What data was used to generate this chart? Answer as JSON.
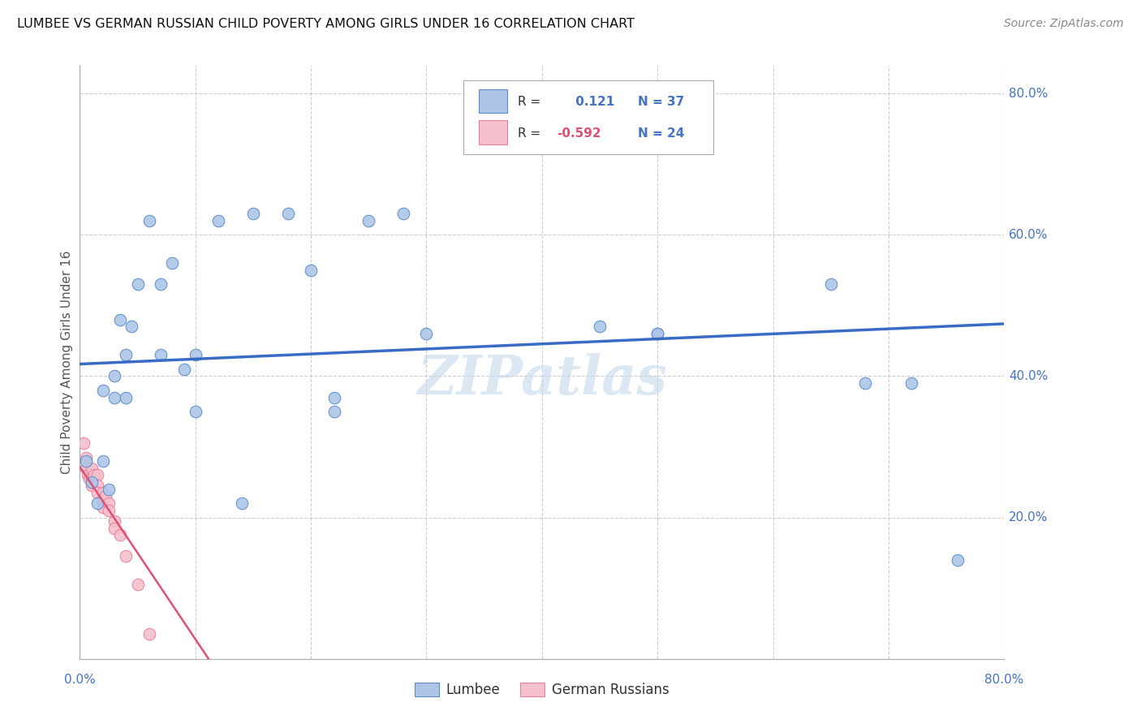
{
  "title": "LUMBEE VS GERMAN RUSSIAN CHILD POVERTY AMONG GIRLS UNDER 16 CORRELATION CHART",
  "source": "Source: ZipAtlas.com",
  "ylabel": "Child Poverty Among Girls Under 16",
  "xlim": [
    0,
    0.8
  ],
  "ylim": [
    0.0,
    0.84
  ],
  "xticks": [
    0.0,
    0.1,
    0.2,
    0.3,
    0.4,
    0.5,
    0.6,
    0.7,
    0.8
  ],
  "yticks": [
    0.0,
    0.2,
    0.4,
    0.6,
    0.8
  ],
  "lumbee_R": 0.121,
  "lumbee_N": 37,
  "german_R": -0.592,
  "german_N": 24,
  "lumbee_color": "#adc6e8",
  "lumbee_edge_color": "#5b8cc8",
  "lumbee_line_color": "#3a6bc4",
  "german_color": "#f5bfce",
  "german_edge_color": "#e8809a",
  "german_line_color": "#e05070",
  "watermark": "ZIPatlas",
  "lumbee_x": [
    0.005,
    0.01,
    0.015,
    0.02,
    0.02,
    0.025,
    0.03,
    0.03,
    0.035,
    0.04,
    0.04,
    0.045,
    0.05,
    0.06,
    0.07,
    0.07,
    0.08,
    0.09,
    0.1,
    0.1,
    0.12,
    0.15,
    0.18,
    0.2,
    0.22,
    0.25,
    0.28,
    0.3,
    0.45,
    0.5,
    0.5,
    0.65,
    0.68,
    0.72,
    0.76,
    0.14,
    0.22
  ],
  "lumbee_y": [
    0.28,
    0.25,
    0.22,
    0.38,
    0.28,
    0.24,
    0.4,
    0.37,
    0.48,
    0.43,
    0.37,
    0.47,
    0.53,
    0.62,
    0.43,
    0.53,
    0.56,
    0.41,
    0.35,
    0.43,
    0.62,
    0.63,
    0.63,
    0.55,
    0.37,
    0.62,
    0.63,
    0.46,
    0.47,
    0.46,
    0.46,
    0.53,
    0.39,
    0.39,
    0.14,
    0.22,
    0.35
  ],
  "german_x": [
    0.003,
    0.005,
    0.005,
    0.007,
    0.008,
    0.01,
    0.01,
    0.01,
    0.012,
    0.015,
    0.015,
    0.015,
    0.02,
    0.02,
    0.02,
    0.022,
    0.025,
    0.025,
    0.03,
    0.03,
    0.035,
    0.04,
    0.05,
    0.06
  ],
  "german_y": [
    0.305,
    0.285,
    0.27,
    0.26,
    0.255,
    0.27,
    0.255,
    0.245,
    0.26,
    0.26,
    0.245,
    0.235,
    0.235,
    0.225,
    0.215,
    0.23,
    0.22,
    0.21,
    0.195,
    0.185,
    0.175,
    0.145,
    0.105,
    0.035
  ],
  "background_color": "#ffffff",
  "grid_color": "#c8c8c8"
}
